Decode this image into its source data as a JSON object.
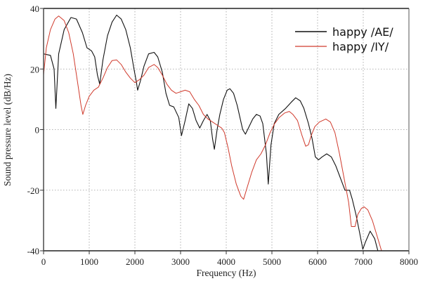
{
  "chart_data": {
    "type": "line",
    "title": "",
    "xlabel": "Frequency (Hz)",
    "ylabel": "Sound pressure level (dB/Hz)",
    "xlim": [
      0,
      8000
    ],
    "ylim": [
      -40,
      40
    ],
    "x_ticks": [
      0,
      1000,
      2000,
      3000,
      4000,
      5000,
      6000,
      7000,
      8000
    ],
    "y_ticks": [
      -40,
      -20,
      0,
      20,
      40
    ],
    "grid": true,
    "legend_position": "upper right",
    "series": [
      {
        "name": "happy /AE/",
        "color": "#111111",
        "x": [
          0,
          150,
          230,
          270,
          330,
          450,
          600,
          720,
          850,
          950,
          1050,
          1120,
          1180,
          1230,
          1300,
          1400,
          1500,
          1600,
          1700,
          1800,
          1900,
          1980,
          2030,
          2060,
          2120,
          2200,
          2300,
          2420,
          2500,
          2600,
          2680,
          2760,
          2850,
          2960,
          3020,
          3100,
          3180,
          3260,
          3340,
          3420,
          3500,
          3580,
          3650,
          3700,
          3740,
          3800,
          3860,
          3940,
          4020,
          4080,
          4160,
          4240,
          4300,
          4360,
          4420,
          4500,
          4580,
          4660,
          4740,
          4800,
          4880,
          4920,
          4980,
          5050,
          5150,
          5300,
          5420,
          5520,
          5620,
          5700,
          5800,
          5880,
          5950,
          6020,
          6100,
          6200,
          6300,
          6400,
          6500,
          6600,
          6700,
          6760,
          6840,
          6920,
          6990,
          7050,
          7150,
          7250,
          7320
        ],
        "y": [
          25,
          24.5,
          20,
          7,
          25,
          33,
          37,
          36.5,
          32,
          27,
          26,
          24,
          18,
          15,
          23,
          31,
          35.5,
          37.8,
          36.5,
          33,
          27,
          20,
          16,
          13,
          16,
          21,
          25,
          25.5,
          24,
          19,
          12,
          8,
          7.5,
          4,
          -2,
          3,
          8.5,
          7,
          3,
          0.5,
          3,
          5,
          3,
          -3,
          -6.5,
          0,
          5,
          10,
          13,
          13.5,
          12,
          8,
          4,
          0,
          -1.5,
          1,
          3.5,
          5,
          4.5,
          2,
          -8,
          -18,
          -5,
          2,
          5,
          7,
          9,
          10.5,
          9.5,
          7,
          2,
          -3,
          -9,
          -10,
          -9,
          -8,
          -9,
          -12,
          -16,
          -20,
          -20,
          -23,
          -28,
          -34,
          -39.5,
          -37,
          -33.5,
          -36,
          -40
        ]
      },
      {
        "name": "happy /IY/",
        "color": "#d03a2c",
        "x": [
          0,
          60,
          150,
          250,
          330,
          450,
          550,
          650,
          750,
          820,
          860,
          920,
          1000,
          1100,
          1200,
          1300,
          1400,
          1500,
          1600,
          1700,
          1800,
          1900,
          2000,
          2100,
          2200,
          2300,
          2420,
          2500,
          2600,
          2700,
          2800,
          2900,
          3000,
          3100,
          3200,
          3300,
          3400,
          3500,
          3600,
          3700,
          3800,
          3900,
          3960,
          4040,
          4120,
          4220,
          4320,
          4380,
          4460,
          4560,
          4660,
          4760,
          4860,
          4960,
          5060,
          5160,
          5280,
          5380,
          5460,
          5560,
          5660,
          5740,
          5800,
          5860,
          5940,
          6040,
          6180,
          6280,
          6380,
          6480,
          6580,
          6680,
          6740,
          6820,
          6880,
          6960,
          7020,
          7100,
          7200,
          7300,
          7400
        ],
        "y": [
          18,
          27,
          33,
          36.5,
          37.5,
          36,
          32,
          25,
          15,
          8,
          5,
          8,
          11,
          13,
          14,
          17,
          20.5,
          22.8,
          23,
          21.5,
          19,
          17,
          15.5,
          16.5,
          18,
          20.5,
          21.5,
          20.5,
          18,
          15,
          13,
          12,
          12.5,
          13,
          12.5,
          10,
          8,
          5,
          3.5,
          2.5,
          1.5,
          0.5,
          -1,
          -6,
          -12,
          -18,
          -22,
          -23,
          -19,
          -14,
          -10,
          -8,
          -5,
          -1,
          2,
          4,
          5.5,
          6,
          5,
          3,
          -2,
          -5.5,
          -5,
          -2,
          1,
          2.5,
          3.5,
          2.5,
          -1,
          -8,
          -16,
          -24,
          -32,
          -32,
          -28,
          -26,
          -25.5,
          -26.5,
          -30,
          -35,
          -40
        ]
      }
    ]
  },
  "legend": {
    "items": [
      {
        "label": "happy /AE/",
        "color": "#111111"
      },
      {
        "label": "happy /IY/",
        "color": "#d03a2c"
      }
    ]
  }
}
